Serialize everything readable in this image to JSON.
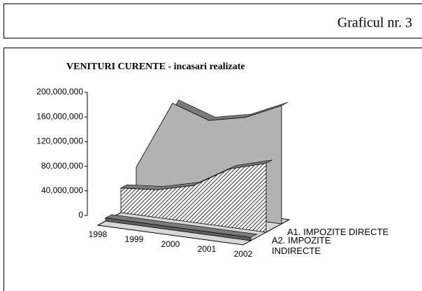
{
  "header": {
    "title": "Graficul nr. 3"
  },
  "chart_data": {
    "type": "area3d",
    "title": "VENITURI CURENTE - incasari realizate",
    "categories": [
      "1998",
      "1999",
      "2000",
      "2001",
      "2002"
    ],
    "series": [
      {
        "color": "#b3b3b3",
        "values": [
          60000000,
          172000000,
          152000000,
          165000000,
          192000000
        ]
      },
      {
        "name": "A1. IMPOZITE DIRECTE",
        "color": "#000000",
        "hatch": true,
        "values": [
          40000000,
          45000000,
          60000000,
          95000000,
          112000000
        ]
      },
      {
        "name": "A2. IMPOZITE INDIRECTE",
        "color": "#606060",
        "values": [
          5000000,
          5000000,
          5000000,
          5000000,
          5000000
        ]
      }
    ],
    "ylim": [
      0,
      200000000
    ],
    "yticks": [
      {
        "value": 0,
        "label": "0"
      },
      {
        "value": 40000000,
        "label": "40,000,000"
      },
      {
        "value": 80000000,
        "label": "80,000,000"
      },
      {
        "value": 120000000,
        "label": "120,000,000"
      },
      {
        "value": 160000000,
        "label": "160,000,000"
      },
      {
        "value": 200000000,
        "label": "200,000,000"
      }
    ]
  }
}
